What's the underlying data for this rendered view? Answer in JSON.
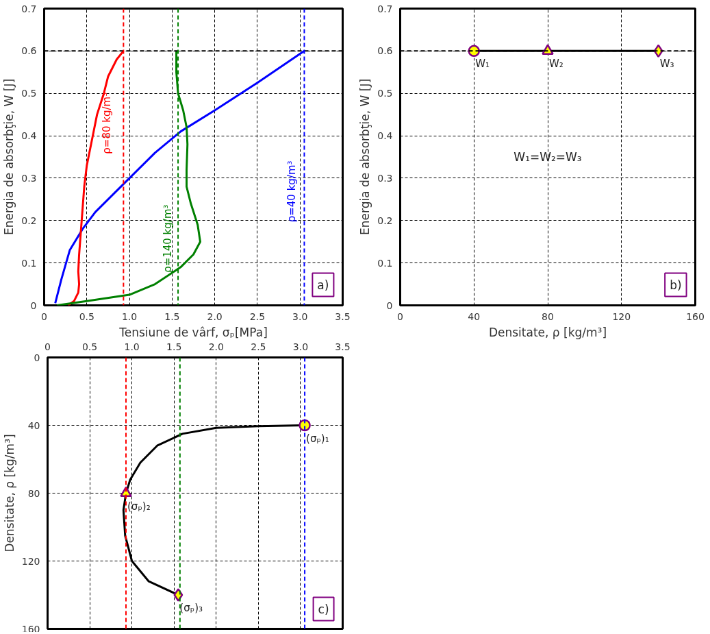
{
  "chart_data": [
    {
      "type": "line",
      "xlabel": "Tensiune de vârf, σₚ[MPa]",
      "ylabel": "Energia de absorbţie, W [J]",
      "xlim": [
        0,
        3.5
      ],
      "xticks": [
        0,
        0.5,
        {
          "value": 1,
          "label": "1.0"
        },
        1.5,
        {
          "value": 2,
          "label": "2.0"
        },
        2.5,
        {
          "value": 3,
          "label": "3.0"
        },
        3.5
      ],
      "ylim": [
        0,
        0.7
      ],
      "yticks": [
        0,
        0.1,
        0.2,
        0.3,
        0.4,
        0.5,
        0.6,
        0.7
      ],
      "grid": true,
      "marker": "none",
      "line_style": "solid",
      "series": [
        {
          "name": "ρ=40 kg/m³",
          "color": "#0000ff",
          "x": [
            0.13,
            0.2,
            0.3,
            0.45,
            0.6,
            0.8,
            1.0,
            1.3,
            1.6,
            2.0,
            2.5,
            3.05
          ],
          "values": [
            0.005,
            0.06,
            0.13,
            0.18,
            0.22,
            0.26,
            0.3,
            0.36,
            0.41,
            0.46,
            0.525,
            0.6
          ]
        },
        {
          "name": "ρ=80 kg/m³",
          "color": "#ff0000",
          "x": [
            0.28,
            0.35,
            0.4,
            0.41,
            0.4,
            0.41,
            0.44,
            0.47,
            0.5,
            0.55,
            0.62,
            0.7,
            0.75,
            0.85,
            0.93
          ],
          "values": [
            0,
            0.01,
            0.03,
            0.05,
            0.08,
            0.12,
            0.2,
            0.28,
            0.33,
            0.38,
            0.45,
            0.5,
            0.54,
            0.58,
            0.6
          ]
        },
        {
          "name": "ρ=140 kg/m³",
          "color": "#008000",
          "x": [
            0.15,
            0.5,
            1.0,
            1.3,
            1.6,
            1.75,
            1.83,
            1.8,
            1.72,
            1.67,
            1.67,
            1.68,
            1.67,
            1.63,
            1.57,
            1.55,
            1.55
          ],
          "values": [
            0,
            0.01,
            0.025,
            0.05,
            0.09,
            0.12,
            0.15,
            0.19,
            0.24,
            0.28,
            0.32,
            0.38,
            0.42,
            0.46,
            0.5,
            0.55,
            0.6
          ]
        }
      ],
      "ref_lines": [
        {
          "axis": "y",
          "value": 0.6,
          "color": "#000000",
          "line_style": "dashed"
        },
        {
          "axis": "x",
          "value": 0.93,
          "color": "#ff0000",
          "line_style": "dashed"
        },
        {
          "axis": "x",
          "value": 1.57,
          "color": "#008000",
          "line_style": "dashed"
        },
        {
          "axis": "x",
          "value": 3.05,
          "color": "#0000ff",
          "line_style": "dashed"
        }
      ],
      "annotations": [
        "a)"
      ]
    },
    {
      "type": "scatter",
      "xlabel": "Densitate, ρ [kg/m³]",
      "ylabel": "Energia de absorbţie, W [J]",
      "xlim": [
        0,
        160
      ],
      "xticks": [
        0,
        40,
        80,
        120,
        160
      ],
      "ylim": [
        0,
        0.7
      ],
      "yticks": [
        0,
        0.1,
        0.2,
        0.3,
        0.4,
        0.5,
        0.6,
        0.7
      ],
      "grid": true,
      "series": [
        {
          "type": "line",
          "color": "#000000",
          "x": [
            40,
            80,
            140
          ],
          "values": [
            0.6,
            0.6,
            0.6
          ],
          "marker": "none"
        },
        {
          "color": "#ffff00",
          "x": [
            40
          ],
          "values": [
            0.6
          ],
          "marker": "circle"
        },
        {
          "color": "#ffff00",
          "x": [
            80
          ],
          "values": [
            0.6
          ],
          "marker": "triangle"
        },
        {
          "color": "#ffff00",
          "x": [
            140
          ],
          "values": [
            0.6
          ],
          "marker": "diamond"
        }
      ],
      "ref_lines": [
        {
          "axis": "y",
          "value": 0.6,
          "color": "#000000",
          "line_style": "dashed"
        }
      ],
      "annotations": [
        {
          "text": "W₁",
          "x": 40,
          "y": 0.6
        },
        {
          "text": "W₂",
          "x": 80,
          "y": 0.6
        },
        {
          "text": "W₃",
          "x": 140,
          "y": 0.6
        },
        "W₁=W₂=W₃",
        "b)"
      ]
    },
    {
      "type": "scatter",
      "ylabel": "Densitate, ρ [kg/m³]",
      "xlim": [
        0,
        3.5
      ],
      "xticks": [
        0,
        0.5,
        {
          "value": 1,
          "label": "1.0"
        },
        1.5,
        {
          "value": 2,
          "label": "2.0"
        },
        2.5,
        {
          "value": 3,
          "label": "3.0"
        },
        3.5
      ],
      "ylim": [
        160,
        0
      ],
      "yticks": [
        0,
        40,
        80,
        120,
        160
      ],
      "grid": true,
      "series": [
        {
          "type": "line",
          "color": "#000000",
          "x": [
            3.05,
            2.5,
            2.0,
            1.6,
            1.3,
            1.1,
            0.98,
            0.93,
            0.9,
            0.92,
            1.0,
            1.2,
            1.55
          ],
          "values": [
            40,
            40.5,
            41.5,
            45,
            52,
            62,
            72,
            80,
            90,
            105,
            120,
            132,
            140
          ],
          "marker": "none"
        },
        {
          "color": "#ffff00",
          "x": [
            3.05
          ],
          "values": [
            40
          ],
          "marker": "circle"
        },
        {
          "color": "#ffff00",
          "x": [
            0.93
          ],
          "values": [
            80
          ],
          "marker": "triangle"
        },
        {
          "color": "#ffff00",
          "x": [
            1.55
          ],
          "values": [
            140
          ],
          "marker": "diamond"
        }
      ],
      "ref_lines": [
        {
          "axis": "x",
          "value": 0.93,
          "color": "#ff0000",
          "line_style": "dashed"
        },
        {
          "axis": "x",
          "value": 1.57,
          "color": "#008000",
          "line_style": "dashed"
        },
        {
          "axis": "x",
          "value": 3.05,
          "color": "#0000ff",
          "line_style": "dashed"
        }
      ],
      "annotations": [
        {
          "text": "(σₚ)₁",
          "x": 3.05,
          "y": 40
        },
        {
          "text": "(σₚ)₂",
          "x": 0.93,
          "y": 80
        },
        {
          "text": "(σₚ)₃",
          "x": 1.55,
          "y": 140
        },
        "c)"
      ]
    }
  ]
}
